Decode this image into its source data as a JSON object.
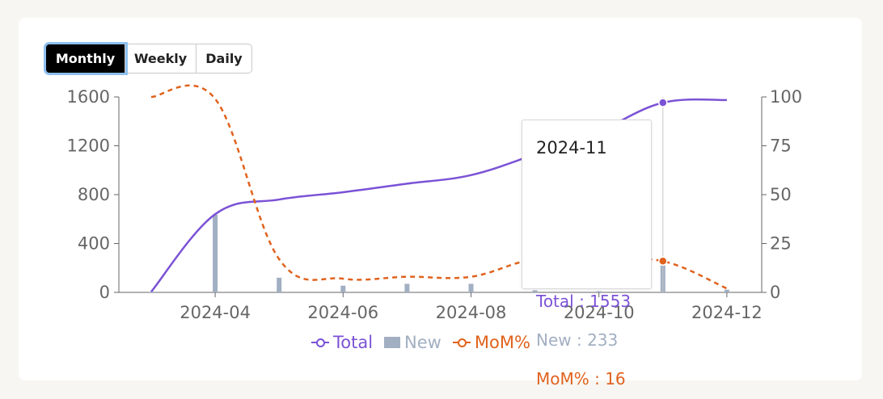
{
  "controls": {
    "granularity": [
      "Monthly",
      "Weekly",
      "Daily"
    ],
    "selected": "Monthly"
  },
  "tooltip": {
    "title": "2024-11",
    "rows": [
      {
        "label": "Total : 1553",
        "color": "#7b52d6"
      },
      {
        "label": "New : 233",
        "color": "#a2afc2"
      },
      {
        "label": "MoM% : 16",
        "color": "#e0621d"
      }
    ]
  },
  "legend": [
    {
      "name": "Total",
      "color": "#7b52d6",
      "kind": "line"
    },
    {
      "name": "New",
      "color": "#a2afc2",
      "kind": "bar"
    },
    {
      "name": "MoM%",
      "color": "#e0621d",
      "kind": "dashed"
    }
  ],
  "chart_data": {
    "type": "line",
    "x_ticks": [
      "2024-04",
      "2024-06",
      "2024-08",
      "2024-10",
      "2024-12"
    ],
    "y_left": {
      "ticks": [
        0,
        400,
        800,
        1200,
        1600
      ],
      "lim": [
        0,
        1600
      ]
    },
    "y_right": {
      "ticks": [
        0,
        25,
        50,
        75,
        100
      ],
      "lim": [
        0,
        100
      ]
    },
    "x": [
      "2024-03",
      "2024-04",
      "2024-05",
      "2024-06",
      "2024-07",
      "2024-08",
      "2024-09",
      "2024-10",
      "2024-11",
      "2024-12"
    ],
    "series": [
      {
        "name": "Total",
        "axis": "left",
        "type": "line",
        "color": "#7b52d6",
        "values": [
          5,
          640,
          760,
          820,
          890,
          960,
          1130,
          1320,
          1553,
          1575
        ]
      },
      {
        "name": "New",
        "axis": "left",
        "type": "bar",
        "color": "#a2afc2",
        "values": [
          5,
          635,
          120,
          55,
          70,
          70,
          17,
          10,
          233,
          22
        ]
      },
      {
        "name": "MoM%",
        "axis": "right",
        "type": "line",
        "dashed": true,
        "color": "#e0621d",
        "values": [
          100,
          99,
          17,
          7,
          8,
          8,
          17,
          16,
          16,
          2
        ]
      }
    ],
    "highlight": "2024-11"
  }
}
